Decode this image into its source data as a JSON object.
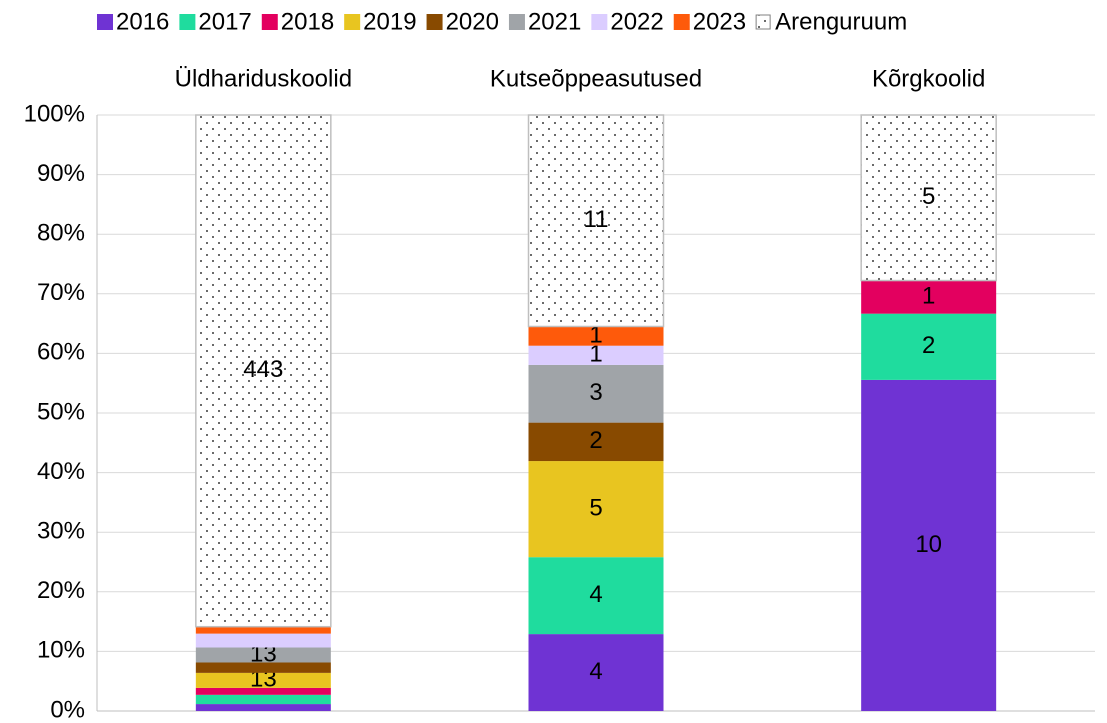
{
  "chart_data": {
    "type": "bar",
    "stacking": "percent",
    "categories": [
      "Üldhariduskoolid",
      "Kutseõppeasutused",
      "Kõrgkoolid"
    ],
    "series": [
      {
        "name": "2016",
        "color": "#6f33d3",
        "values": [
          6,
          4,
          10
        ]
      },
      {
        "name": "2017",
        "color": "#1fdc9e",
        "values": [
          8,
          4,
          2
        ]
      },
      {
        "name": "2018",
        "color": "#e3005f",
        "values": [
          6,
          0,
          1
        ]
      },
      {
        "name": "2019",
        "color": "#e8c520",
        "values": [
          13,
          5,
          0
        ]
      },
      {
        "name": "2020",
        "color": "#884a00",
        "values": [
          9,
          2,
          0
        ]
      },
      {
        "name": "2021",
        "color": "#a0a4a8",
        "values": [
          13,
          3,
          0
        ]
      },
      {
        "name": "2022",
        "color": "#dbcdff",
        "values": [
          12,
          1,
          0
        ]
      },
      {
        "name": "2023",
        "color": "#fe5a0b",
        "values": [
          6,
          1,
          0
        ]
      },
      {
        "name": "Arenguruum",
        "color": "dots",
        "values": [
          443,
          11,
          5
        ]
      }
    ],
    "ylim": [
      0,
      100
    ],
    "yticks": [
      {
        "value": 0,
        "label": "0%"
      },
      {
        "value": 10,
        "label": "10%"
      },
      {
        "value": 20,
        "label": "20%"
      },
      {
        "value": 30,
        "label": "30%"
      },
      {
        "value": 40,
        "label": "40%"
      },
      {
        "value": 50,
        "label": "50%"
      },
      {
        "value": 60,
        "label": "60%"
      },
      {
        "value": 70,
        "label": "70%"
      },
      {
        "value": 80,
        "label": "80%"
      },
      {
        "value": 90,
        "label": "90%"
      },
      {
        "value": 100,
        "label": "100%"
      }
    ],
    "grid": true,
    "legend": "top"
  }
}
